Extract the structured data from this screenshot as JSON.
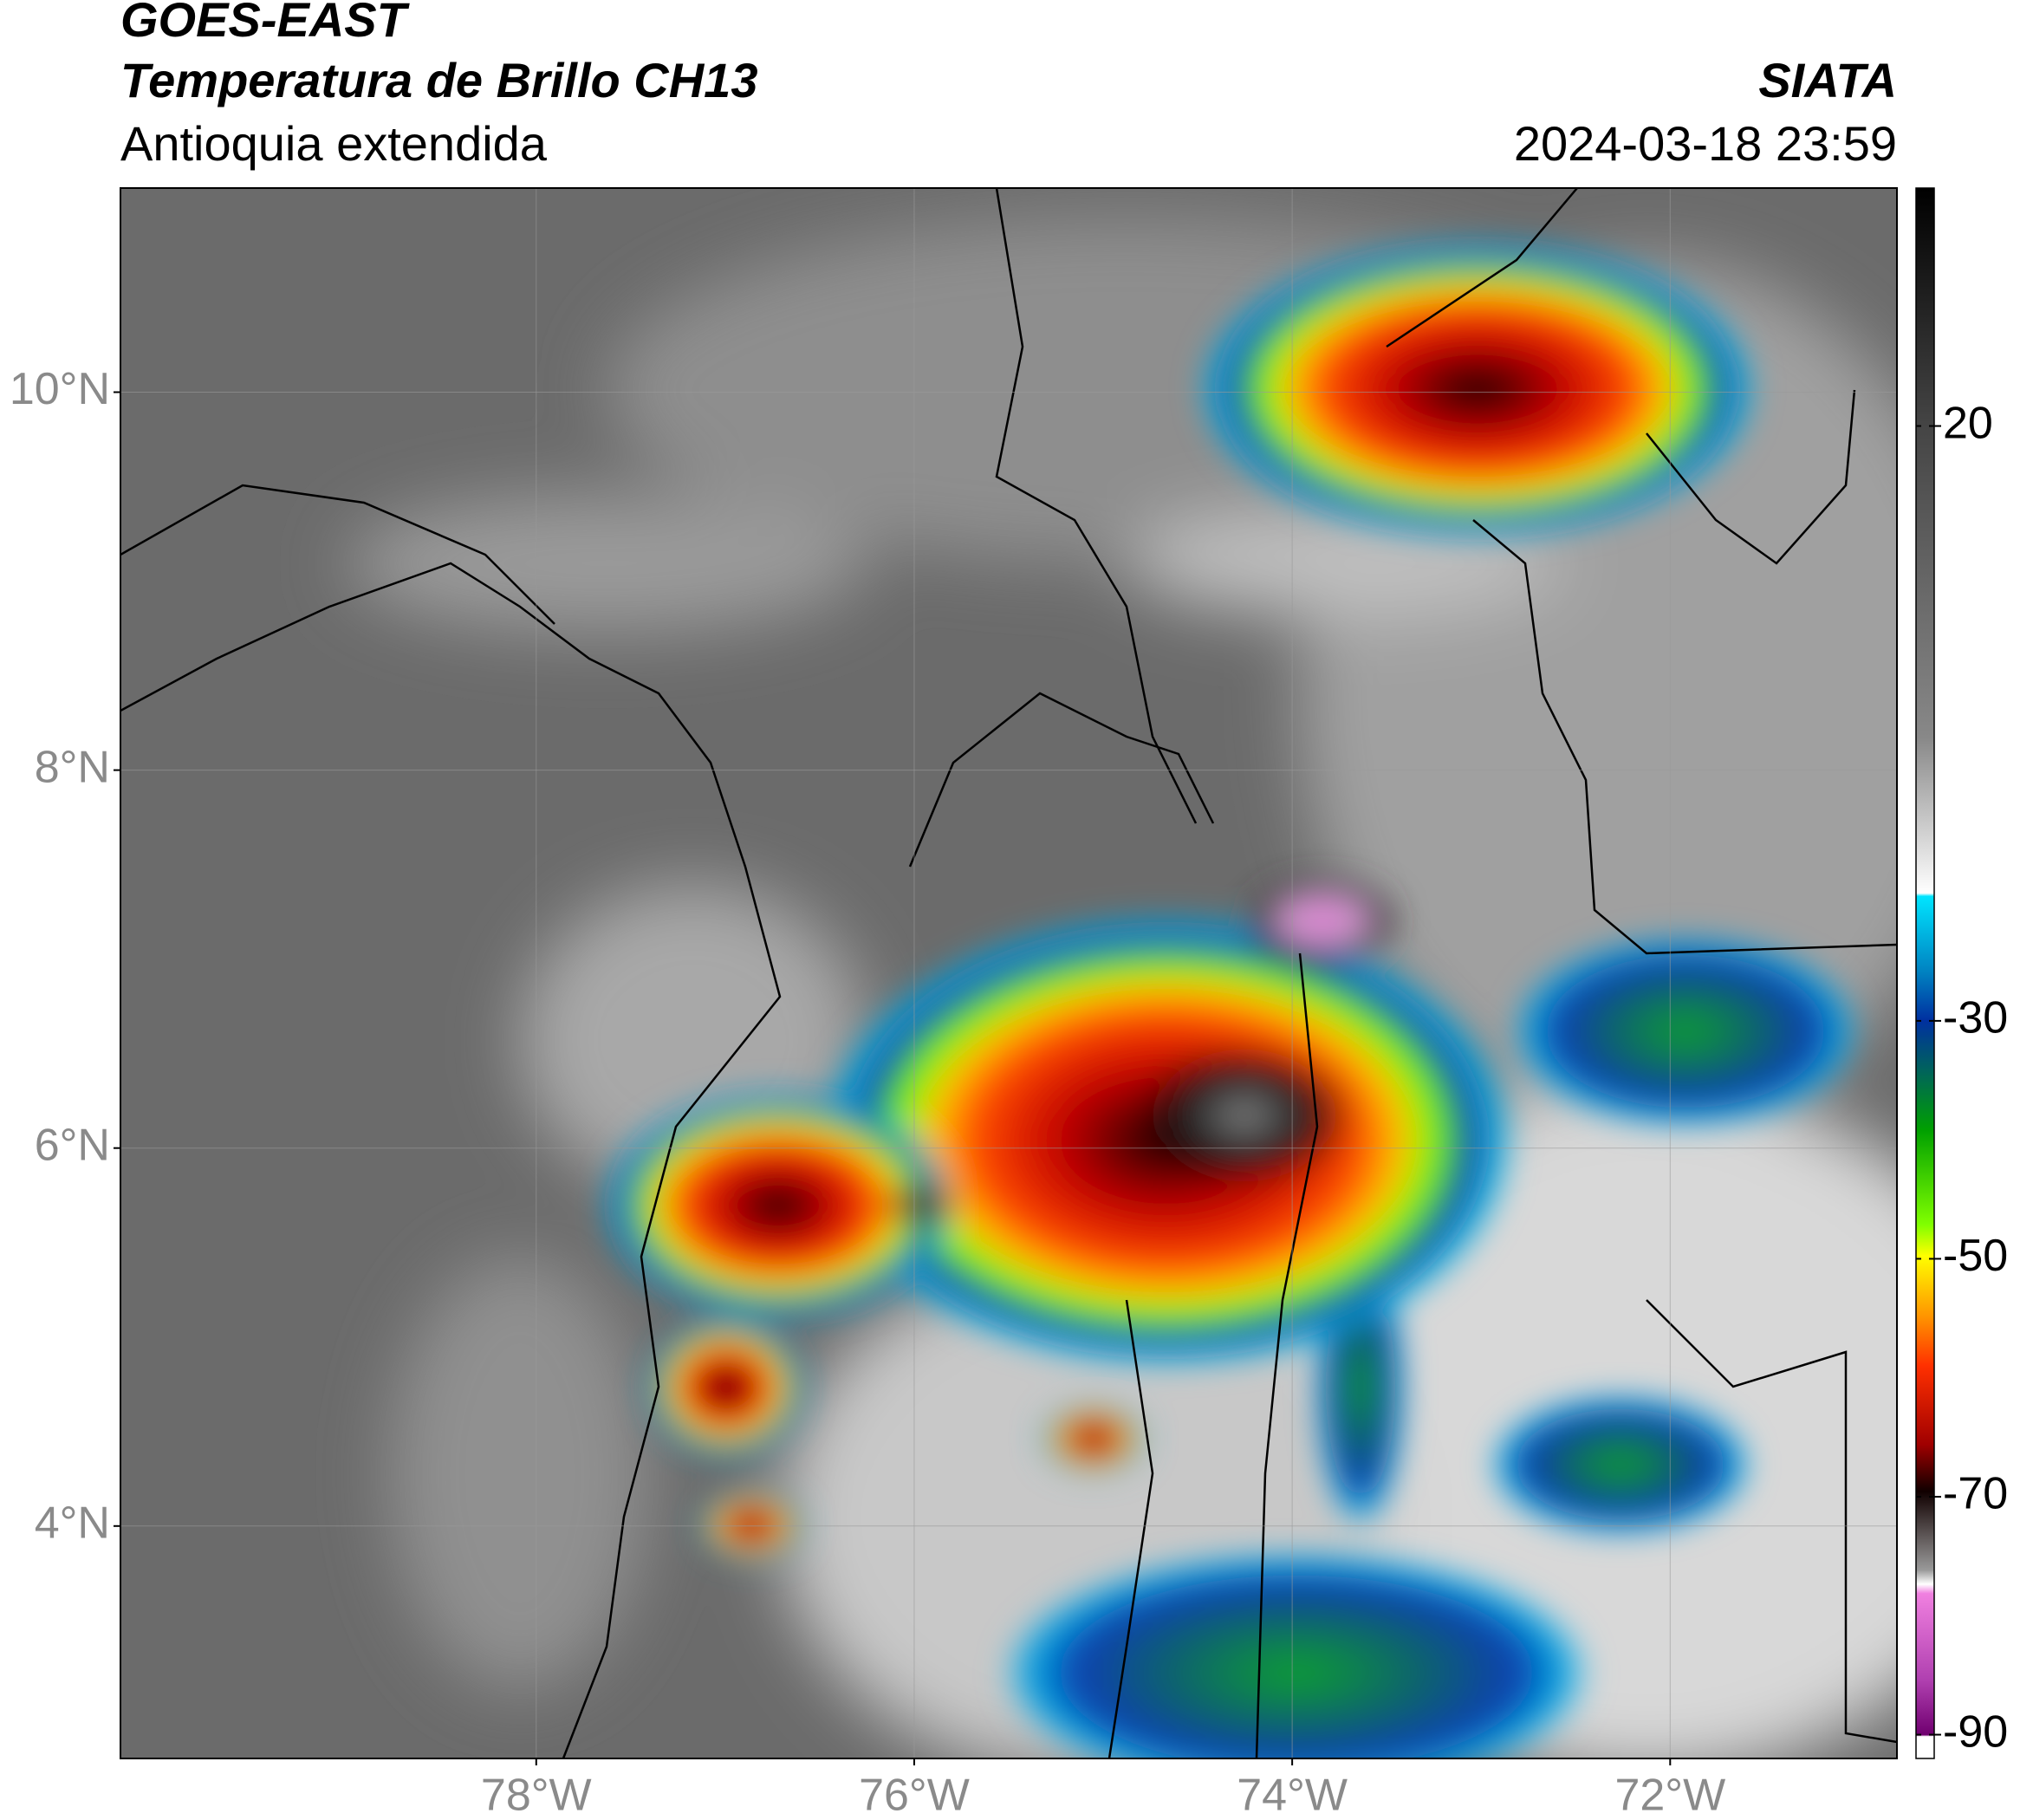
{
  "chart_data": {
    "type": "map",
    "title": "GOES-EAST",
    "subtitle": "Temperatura de Brillo CH13",
    "region": "Antioquia extendida",
    "source": "SIATA",
    "timestamp": "2024-03-18 23:59",
    "xlim": [
      -80.2,
      -70.8
    ],
    "ylim": [
      2.77,
      11.08
    ],
    "xticks": [
      {
        "value": -78,
        "label": "78°W"
      },
      {
        "value": -76,
        "label": "76°W"
      },
      {
        "value": -74,
        "label": "74°W"
      },
      {
        "value": -72,
        "label": "72°W"
      }
    ],
    "yticks": [
      {
        "value": 10,
        "label": "10°N"
      },
      {
        "value": 8,
        "label": "8°N"
      },
      {
        "value": 6,
        "label": "6°N"
      },
      {
        "value": 4,
        "label": "4°N"
      }
    ],
    "grid": true,
    "colorbar": {
      "lim": [
        -92,
        40
      ],
      "ticks": [
        20,
        -30,
        -50,
        -70,
        -90
      ]
    }
  }
}
